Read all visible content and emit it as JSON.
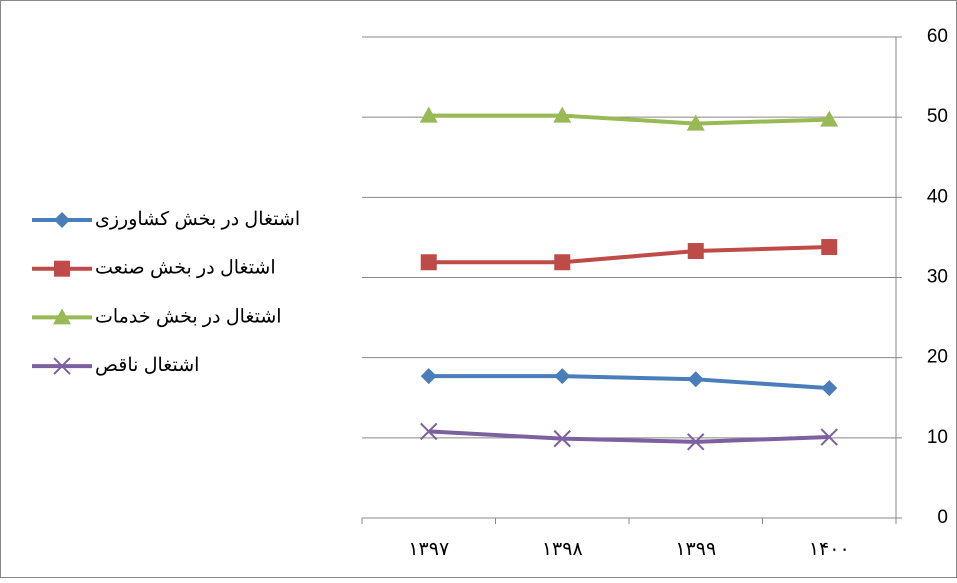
{
  "chart_data": {
    "type": "line",
    "categories": [
      "۱۳۹۷",
      "۱۳۹۸",
      "۱۳۹۹",
      "۱۴۰۰"
    ],
    "series": [
      {
        "name": "اشتغال در بخش کشاورزی",
        "color": "#4a7ebb",
        "marker": "diamond",
        "values": [
          17.7,
          17.7,
          17.3,
          16.2
        ]
      },
      {
        "name": "اشتغال در بخش صنعت",
        "color": "#be4b48",
        "marker": "square",
        "values": [
          31.9,
          31.9,
          33.3,
          33.8
        ]
      },
      {
        "name": "اشتغال در بخش خدمات",
        "color": "#98b954",
        "marker": "triangle",
        "values": [
          50.2,
          50.2,
          49.2,
          49.7
        ]
      },
      {
        "name": "اشتغال ناقص",
        "color": "#7d60a0",
        "marker": "x",
        "values": [
          10.8,
          9.9,
          9.5,
          10.1
        ]
      }
    ],
    "ylim": [
      0,
      60
    ],
    "yticks": [
      0,
      10,
      20,
      30,
      40,
      50,
      60
    ],
    "grid": true,
    "legend": "left"
  }
}
